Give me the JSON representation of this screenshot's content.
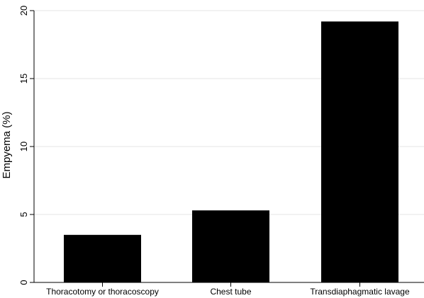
{
  "chart_data": {
    "type": "bar",
    "title": "",
    "xlabel": "",
    "ylabel": "Empyema (%)",
    "categories": [
      "Thoracotomy or thoracoscopy",
      "Chest tube",
      "Transdiaphagmatic lavage"
    ],
    "values": [
      3.5,
      5.3,
      19.2
    ],
    "ylim": [
      0,
      20
    ],
    "yticks": [
      0,
      5,
      10,
      15,
      20
    ],
    "ytick_labels": [
      "0",
      "5",
      "10",
      "15",
      "20"
    ],
    "grid": "horizontal",
    "legend": "none",
    "colors": {
      "bar": "#000000",
      "grid": "#e6e6e6",
      "axis": "#000000",
      "background": "#ffffff"
    }
  }
}
